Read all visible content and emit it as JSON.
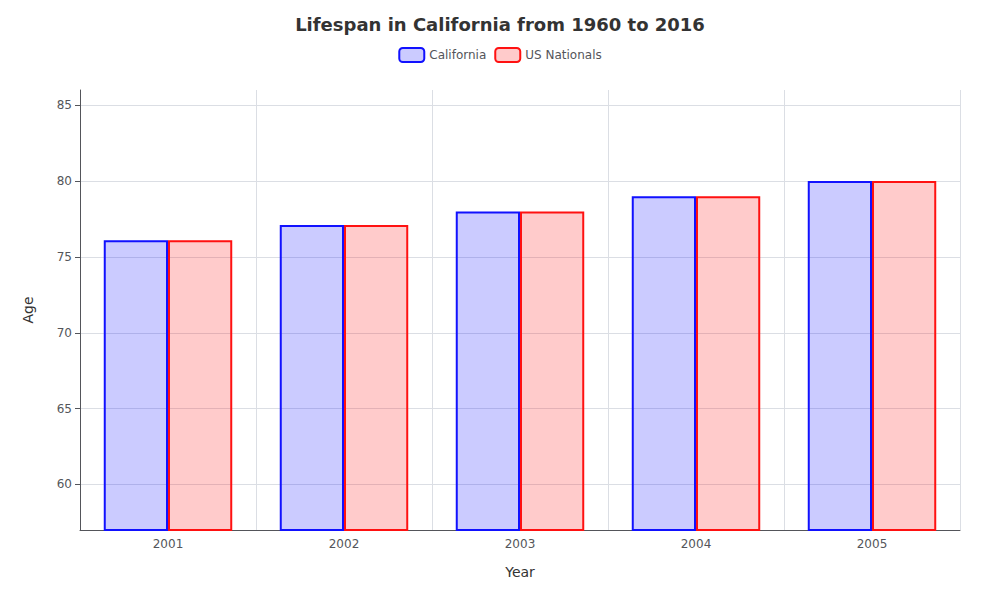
{
  "chart_data": {
    "type": "bar",
    "title": "Lifespan in California from 1960 to 2016",
    "xlabel": "Year",
    "ylabel": "Age",
    "categories": [
      2001,
      2002,
      2003,
      2004,
      2005
    ],
    "series": [
      {
        "name": "California",
        "color": "#1111ff",
        "values": [
          76.1,
          77.1,
          78.0,
          79.0,
          80.0
        ]
      },
      {
        "name": "US Nationals",
        "color": "#ff1111",
        "values": [
          76.1,
          77.1,
          78.0,
          79.0,
          80.0
        ]
      }
    ],
    "ylim": [
      57,
      86
    ],
    "yticks": [
      60,
      65,
      70,
      75,
      80,
      85
    ],
    "grid": true,
    "legend": "top"
  }
}
